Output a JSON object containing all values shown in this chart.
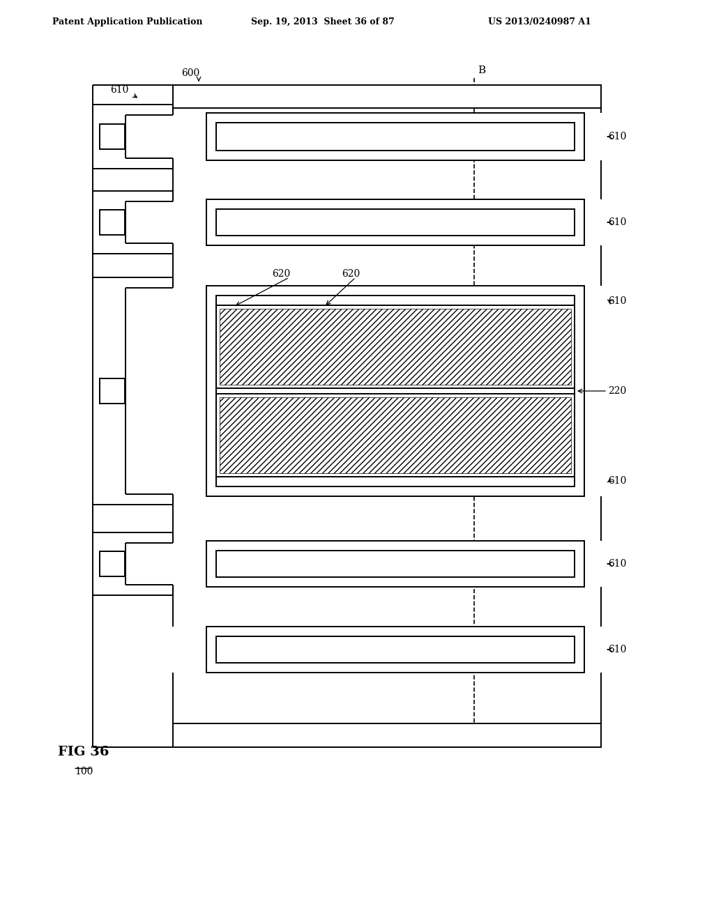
{
  "header_left": "Patent Application Publication",
  "header_mid": "Sep. 19, 2013  Sheet 36 of 87",
  "header_right": "US 2013/0240987 A1",
  "bg": "#ffffff",
  "lc": "#000000",
  "lw": 1.4
}
